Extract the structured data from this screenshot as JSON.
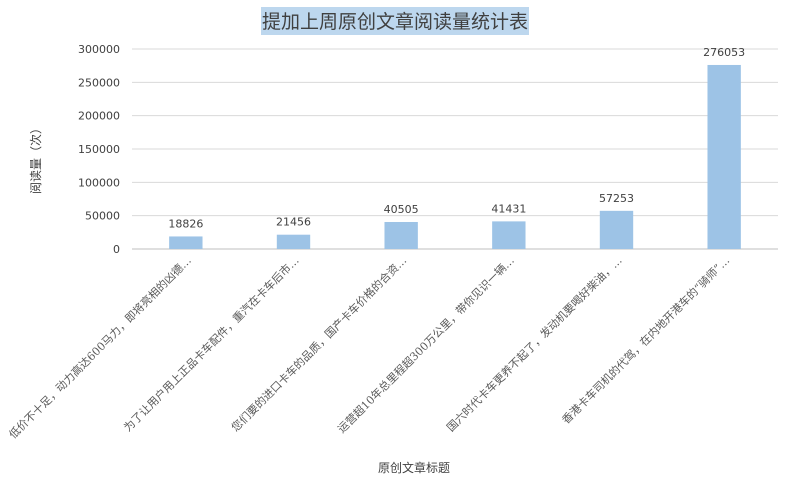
{
  "chart_data": {
    "type": "bar",
    "title": "提加上周原创文章阅读量统计表",
    "xlabel": "原创文章标题",
    "ylabel": "阅读量（次）",
    "categories": [
      "低价不十足，动力高达600马力，即将亮相的凶德…",
      "为了让用户用上正品卡车配件，重汽在卡车后市…",
      "您们要的进口卡车的品质，国产卡车价格的合资…",
      "运营超10年总里程超300万公里，带你见识一辆…",
      "国六时代卡车更养不起了，发动机要喝好柴油，…",
      "香港卡车司机的代驾，在内地开港车的“骑师”…"
    ],
    "values": [
      18826,
      21456,
      40505,
      41431,
      57253,
      276053
    ],
    "data_labels": [
      "18826",
      "21456",
      "40505",
      "41431",
      "57253",
      "276053"
    ],
    "yticks": [
      "0",
      "50000",
      "100000",
      "150000",
      "200000",
      "250000",
      "300000"
    ],
    "ylim": [
      0,
      300000
    ],
    "grid": true,
    "legend": "none",
    "bar_color": "#9dc3e6"
  }
}
